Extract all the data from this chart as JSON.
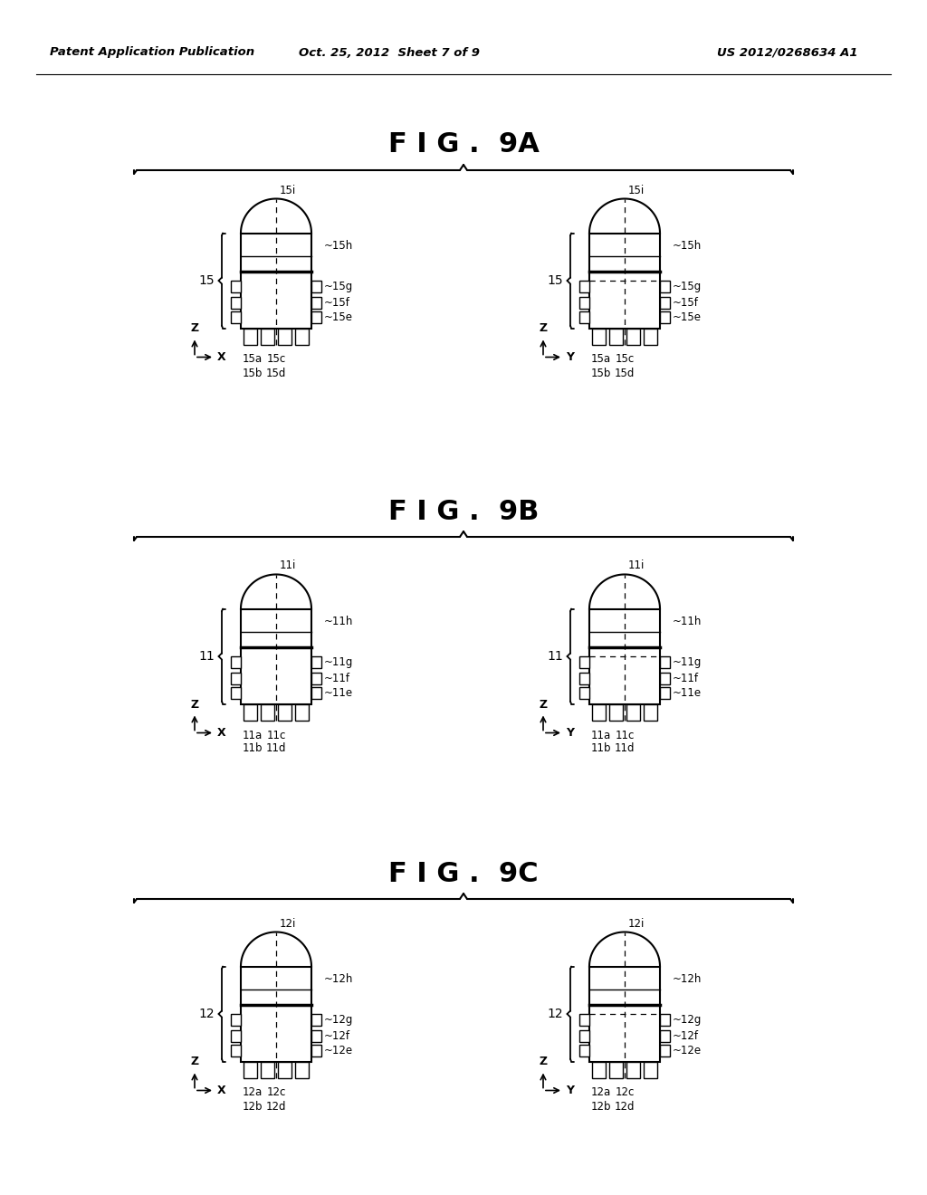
{
  "header_left": "Patent Application Publication",
  "header_center": "Oct. 25, 2012  Sheet 7 of 9",
  "header_right": "US 2012/0268634 A1",
  "figures": [
    {
      "title": "F I G .  9A",
      "prefix": "15",
      "side_labels": [
        "15h",
        "15g",
        "15f",
        "15e"
      ],
      "top_label": "15i",
      "brace_label": "15",
      "bot_left_view1": [
        "15a",
        "15b"
      ],
      "bot_right_view1": [
        "15c",
        "15d"
      ],
      "bot_left_view2": [
        "15a",
        "15b"
      ],
      "bot_right_view2": [
        "15c",
        "15d"
      ]
    },
    {
      "title": "F I G .  9B",
      "prefix": "11",
      "side_labels": [
        "11h",
        "11g",
        "11f",
        "11e"
      ],
      "top_label": "11i",
      "brace_label": "11",
      "bot_left_view1": [
        "11a",
        "11b"
      ],
      "bot_right_view1": [
        "11c",
        "11d"
      ],
      "bot_left_view2": [
        "11a",
        "11b"
      ],
      "bot_right_view2": [
        "11c",
        "11d"
      ]
    },
    {
      "title": "F I G .  9C",
      "prefix": "12",
      "side_labels": [
        "12h",
        "12g",
        "12f",
        "12e"
      ],
      "top_label": "12i",
      "brace_label": "12",
      "bot_left_view1": [
        "12a",
        "12b"
      ],
      "bot_right_view1": [
        "12c",
        "12d"
      ],
      "bot_left_view2": [
        "12a",
        "12b"
      ],
      "bot_right_view2": [
        "12c",
        "12d"
      ]
    }
  ],
  "bg_color": "#ffffff",
  "line_color": "#000000",
  "text_color": "#000000"
}
